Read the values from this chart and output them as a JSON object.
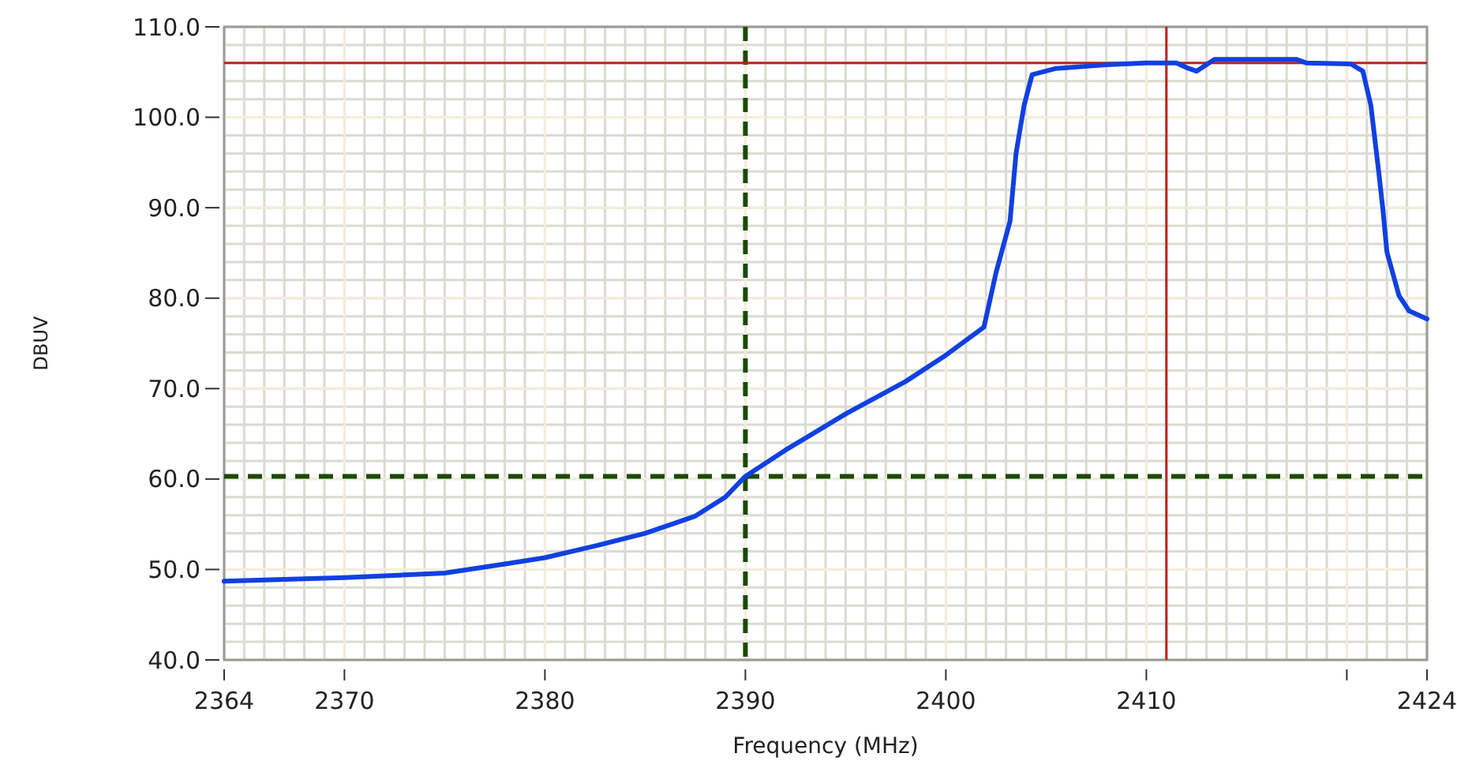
{
  "chart_data": {
    "type": "line",
    "xlabel": "Frequency (MHz)",
    "ylabel": "DBUV",
    "xlim": [
      2364,
      2424
    ],
    "xticks": [
      2364,
      2370,
      2380,
      2390,
      2400,
      2410,
      {
        "value": 2420,
        "label": null
      },
      2424
    ],
    "ylim": [
      40,
      110
    ],
    "yticks": [
      {
        "value": 40,
        "label": "40.0"
      },
      {
        "value": 50,
        "label": "50.0"
      },
      {
        "value": 60,
        "label": "60.0"
      },
      {
        "value": 70,
        "label": "70.0"
      },
      {
        "value": 80,
        "label": "80.0"
      },
      {
        "value": 90,
        "label": "90.0"
      },
      {
        "value": 100,
        "label": "100.0"
      },
      {
        "value": 110,
        "label": "110.0"
      }
    ],
    "grid": true,
    "marker": "none",
    "line_style": "solid",
    "series": [
      {
        "color": "#1040e0",
        "x": [
          2364,
          2367,
          2370,
          2375,
          2378,
          2380,
          2382.5,
          2385,
          2387.5,
          2389,
          2390,
          2392,
          2395,
          2398,
          2400,
          2401.9,
          2402.5,
          2403.2,
          2403.5,
          2403.9,
          2404.3,
          2405.5,
          2408,
          2410,
          2411.5,
          2412,
          2412.5,
          2413.4,
          2415,
          2417.5,
          2418,
          2420.2,
          2420.8,
          2421.2,
          2421.6,
          2421.8,
          2422,
          2422.6,
          2423.1,
          2424
        ],
        "values": [
          48.7,
          48.9,
          49.1,
          49.6,
          50.6,
          51.3,
          52.6,
          54,
          55.9,
          58,
          60.3,
          63.2,
          67.2,
          70.8,
          73.7,
          76.8,
          82.8,
          88.5,
          96,
          101.3,
          104.7,
          105.4,
          105.8,
          106,
          106,
          105.5,
          105.1,
          106.4,
          106.4,
          106.4,
          106,
          105.9,
          105.1,
          101.3,
          93.8,
          89.8,
          85.1,
          80.3,
          78.6,
          77.7
        ]
      }
    ],
    "ref_lines": [
      {
        "axis": "x",
        "value": 2390,
        "color": "#1a4a00",
        "line_style": "dashed"
      },
      {
        "axis": "y",
        "value": 60.3,
        "color": "#1a4a00",
        "line_style": "dashed"
      },
      {
        "axis": "x",
        "value": 2411,
        "color": "#c02020",
        "line_style": "solid"
      },
      {
        "axis": "y",
        "value": 106,
        "color": "#c02020",
        "line_style": "solid"
      }
    ]
  }
}
